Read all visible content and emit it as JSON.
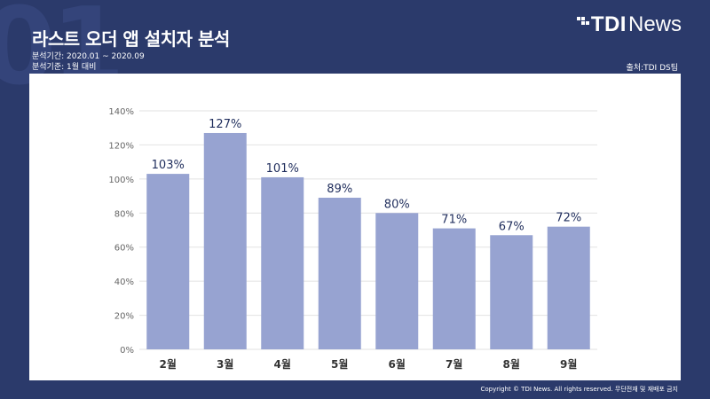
{
  "page": {
    "bg_digits": "01",
    "title": "라스트 오더 앱 설치자 분석",
    "period": "분석기간: 2020.01 ~ 2020.09",
    "basis": "분석기준: 1월 대비",
    "source": "출처:TDI DS팀",
    "logo_tdi": "TDI",
    "logo_news": "News",
    "footer": "Copyright © TDI News. All rights reserved. 무단전재 및 재배포 금지"
  },
  "colors": {
    "background": "#2b3a6b",
    "bar": "#97a3d1",
    "value_label": "#1f2d5c",
    "axis_text": "#666666",
    "grid": "#e2e2e2"
  },
  "chart_data": {
    "type": "bar",
    "title": "",
    "xlabel": "",
    "ylabel": "",
    "categories": [
      "2월",
      "3월",
      "4월",
      "5월",
      "6월",
      "7월",
      "8월",
      "9월"
    ],
    "values": [
      103,
      127,
      101,
      89,
      80,
      71,
      67,
      72
    ],
    "value_labels": [
      "103%",
      "127%",
      "101%",
      "89%",
      "80%",
      "71%",
      "67%",
      "72%"
    ],
    "y_ticks": [
      0,
      20,
      40,
      60,
      80,
      100,
      120,
      140
    ],
    "y_tick_labels": [
      "0%",
      "20%",
      "40%",
      "60%",
      "80%",
      "100%",
      "120%",
      "140%"
    ],
    "ylim": [
      0,
      140
    ],
    "grid": true,
    "legend": "none"
  }
}
